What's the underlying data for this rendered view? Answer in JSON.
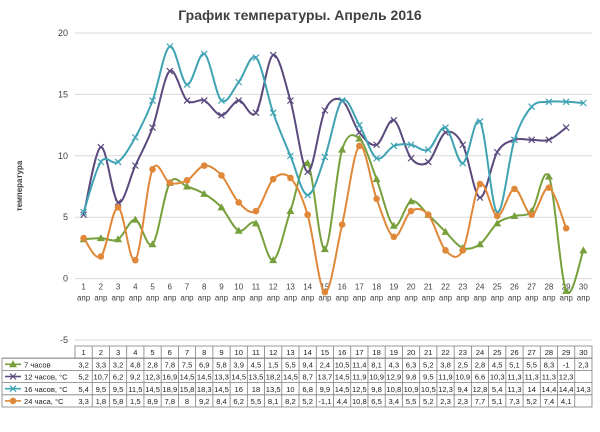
{
  "chart_data": {
    "type": "line",
    "title": "График температуры. Апрель 2016",
    "ylabel": "температура",
    "xlabel": "",
    "ylim": [
      -5,
      20
    ],
    "yticks": [
      -5,
      0,
      5,
      10,
      15,
      20
    ],
    "x": [
      1,
      2,
      3,
      4,
      5,
      6,
      7,
      8,
      9,
      10,
      11,
      12,
      13,
      14,
      15,
      16,
      17,
      18,
      19,
      20,
      21,
      22,
      23,
      24,
      25,
      26,
      27,
      28,
      29,
      30
    ],
    "x_unit": "апр",
    "grid": true,
    "legend": "table-below",
    "table_values": {
      "7 часов": [
        "3,2",
        "3,3",
        "3,2",
        "4,8",
        "2,8",
        "7,8",
        "7,5",
        "6,9",
        "5,8",
        "3,9",
        "4,5",
        "1,5",
        "5,5",
        "9,4",
        "2,4",
        "10,5",
        "11,4",
        "8,1",
        "4,3",
        "6,3",
        "5,2",
        "3,8",
        "2,5",
        "2,8",
        "4,5",
        "5,1",
        "5,5",
        "8,3",
        "-1",
        "2,3"
      ],
      "12 часов, °С": [
        "5,2",
        "10,7",
        "6,2",
        "9,2",
        "12,3",
        "16,9",
        "14,5",
        "14,5",
        "13,3",
        "14,5",
        "13,5",
        "18,2",
        "14,5",
        "8,7",
        "13,7",
        "14,5",
        "11,9",
        "10,9",
        "12,9",
        "9,8",
        "9,5",
        "11,9",
        "10,9",
        "6,6",
        "10,3",
        "11,3",
        "11,3",
        "11,3",
        "12,3",
        ""
      ],
      "16 часов, °С": [
        "5,4",
        "9,5",
        "9,5",
        "11,5",
        "14,5",
        "18,9",
        "15,8",
        "18,3",
        "14,5",
        "16",
        "18",
        "13,5",
        "10",
        "6,8",
        "9,9",
        "14,5",
        "12,5",
        "9,8",
        "10,8",
        "10,9",
        "10,5",
        "12,3",
        "9,4",
        "12,8",
        "5,4",
        "11,3",
        "14",
        "14,4",
        "14,4",
        "14,3"
      ],
      "24 часа, °С": [
        "3,3",
        "1,8",
        "5,8",
        "1,5",
        "8,9",
        "7,8",
        "8",
        "9,2",
        "8,4",
        "6,2",
        "5,5",
        "8,1",
        "8,2",
        "5,2",
        "-1,1",
        "4,4",
        "10,8",
        "6,5",
        "3,4",
        "5,5",
        "5,2",
        "2,3",
        "2,3",
        "7,7",
        "5,1",
        "7,3",
        "5,2",
        "7,4",
        "4,1",
        ""
      ]
    },
    "series": [
      {
        "name": "7 часов",
        "color": "#77a03c",
        "marker": "triangle",
        "values": [
          3.2,
          3.3,
          3.2,
          4.8,
          2.8,
          7.8,
          7.5,
          6.9,
          5.8,
          3.9,
          4.5,
          1.5,
          5.5,
          9.4,
          2.4,
          10.5,
          11.4,
          8.1,
          4.3,
          6.3,
          5.2,
          3.8,
          2.5,
          2.8,
          4.5,
          5.1,
          5.5,
          8.3,
          -1,
          2.3
        ]
      },
      {
        "name": "12 часов, °С",
        "color": "#5a4a7e",
        "marker": "x",
        "values": [
          5.2,
          10.7,
          6.2,
          9.2,
          12.3,
          16.9,
          14.5,
          14.5,
          13.3,
          14.5,
          13.5,
          18.2,
          14.5,
          8.7,
          13.7,
          14.5,
          11.9,
          10.9,
          12.9,
          9.8,
          9.5,
          11.9,
          10.9,
          6.6,
          10.3,
          11.3,
          11.3,
          11.3,
          12.3,
          null
        ]
      },
      {
        "name": "16 часов, °С",
        "color": "#3fa3b3",
        "marker": "x",
        "values": [
          5.4,
          9.5,
          9.5,
          11.5,
          14.5,
          18.9,
          15.8,
          18.3,
          14.5,
          16,
          18,
          13.5,
          10,
          6.8,
          9.9,
          14.5,
          12.5,
          9.8,
          10.8,
          10.9,
          10.5,
          12.3,
          9.4,
          12.8,
          5.4,
          11.3,
          14,
          14.4,
          14.4,
          14.3
        ]
      },
      {
        "name": "24 часа, °С",
        "color": "#e0883a",
        "marker": "circle",
        "values": [
          3.3,
          1.8,
          5.8,
          1.5,
          8.9,
          7.8,
          8,
          9.2,
          8.4,
          6.2,
          5.5,
          8.1,
          8.2,
          5.2,
          -1.1,
          4.4,
          10.8,
          6.5,
          3.4,
          5.5,
          5.2,
          2.3,
          2.3,
          7.7,
          5.1,
          7.3,
          5.2,
          7.4,
          4.1,
          null
        ]
      }
    ]
  }
}
